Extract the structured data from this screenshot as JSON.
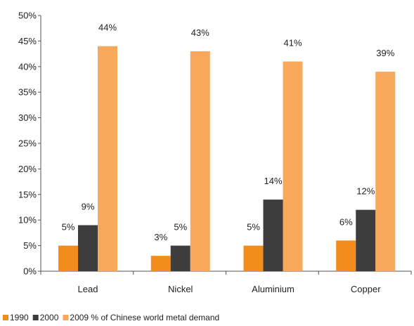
{
  "chart_data": {
    "type": "bar",
    "categories": [
      "Lead",
      "Nickel",
      "Aluminium",
      "Copper"
    ],
    "series": [
      {
        "name": "1990",
        "color": "#f28c1c",
        "values": [
          5,
          3,
          5,
          6
        ],
        "labels": [
          "5%",
          "3%",
          "5%",
          "6%"
        ]
      },
      {
        "name": "2000",
        "color": "#3d3d3d",
        "values": [
          9,
          5,
          14,
          12
        ],
        "labels": [
          "9%",
          "5%",
          "14%",
          "12%"
        ]
      },
      {
        "name": "2009 % of Chinese world metal demand",
        "color": "#f7a85a",
        "values": [
          44,
          43,
          41,
          39
        ],
        "labels": [
          "44%",
          "43%",
          "41%",
          "39%"
        ]
      }
    ],
    "ylim": [
      0,
      50
    ],
    "yticks": [
      "0%",
      "5%",
      "10%",
      "15%",
      "20%",
      "25%",
      "30%",
      "35%",
      "40%",
      "45%",
      "50%"
    ],
    "grid": false,
    "legend_position": "bottom-left"
  }
}
